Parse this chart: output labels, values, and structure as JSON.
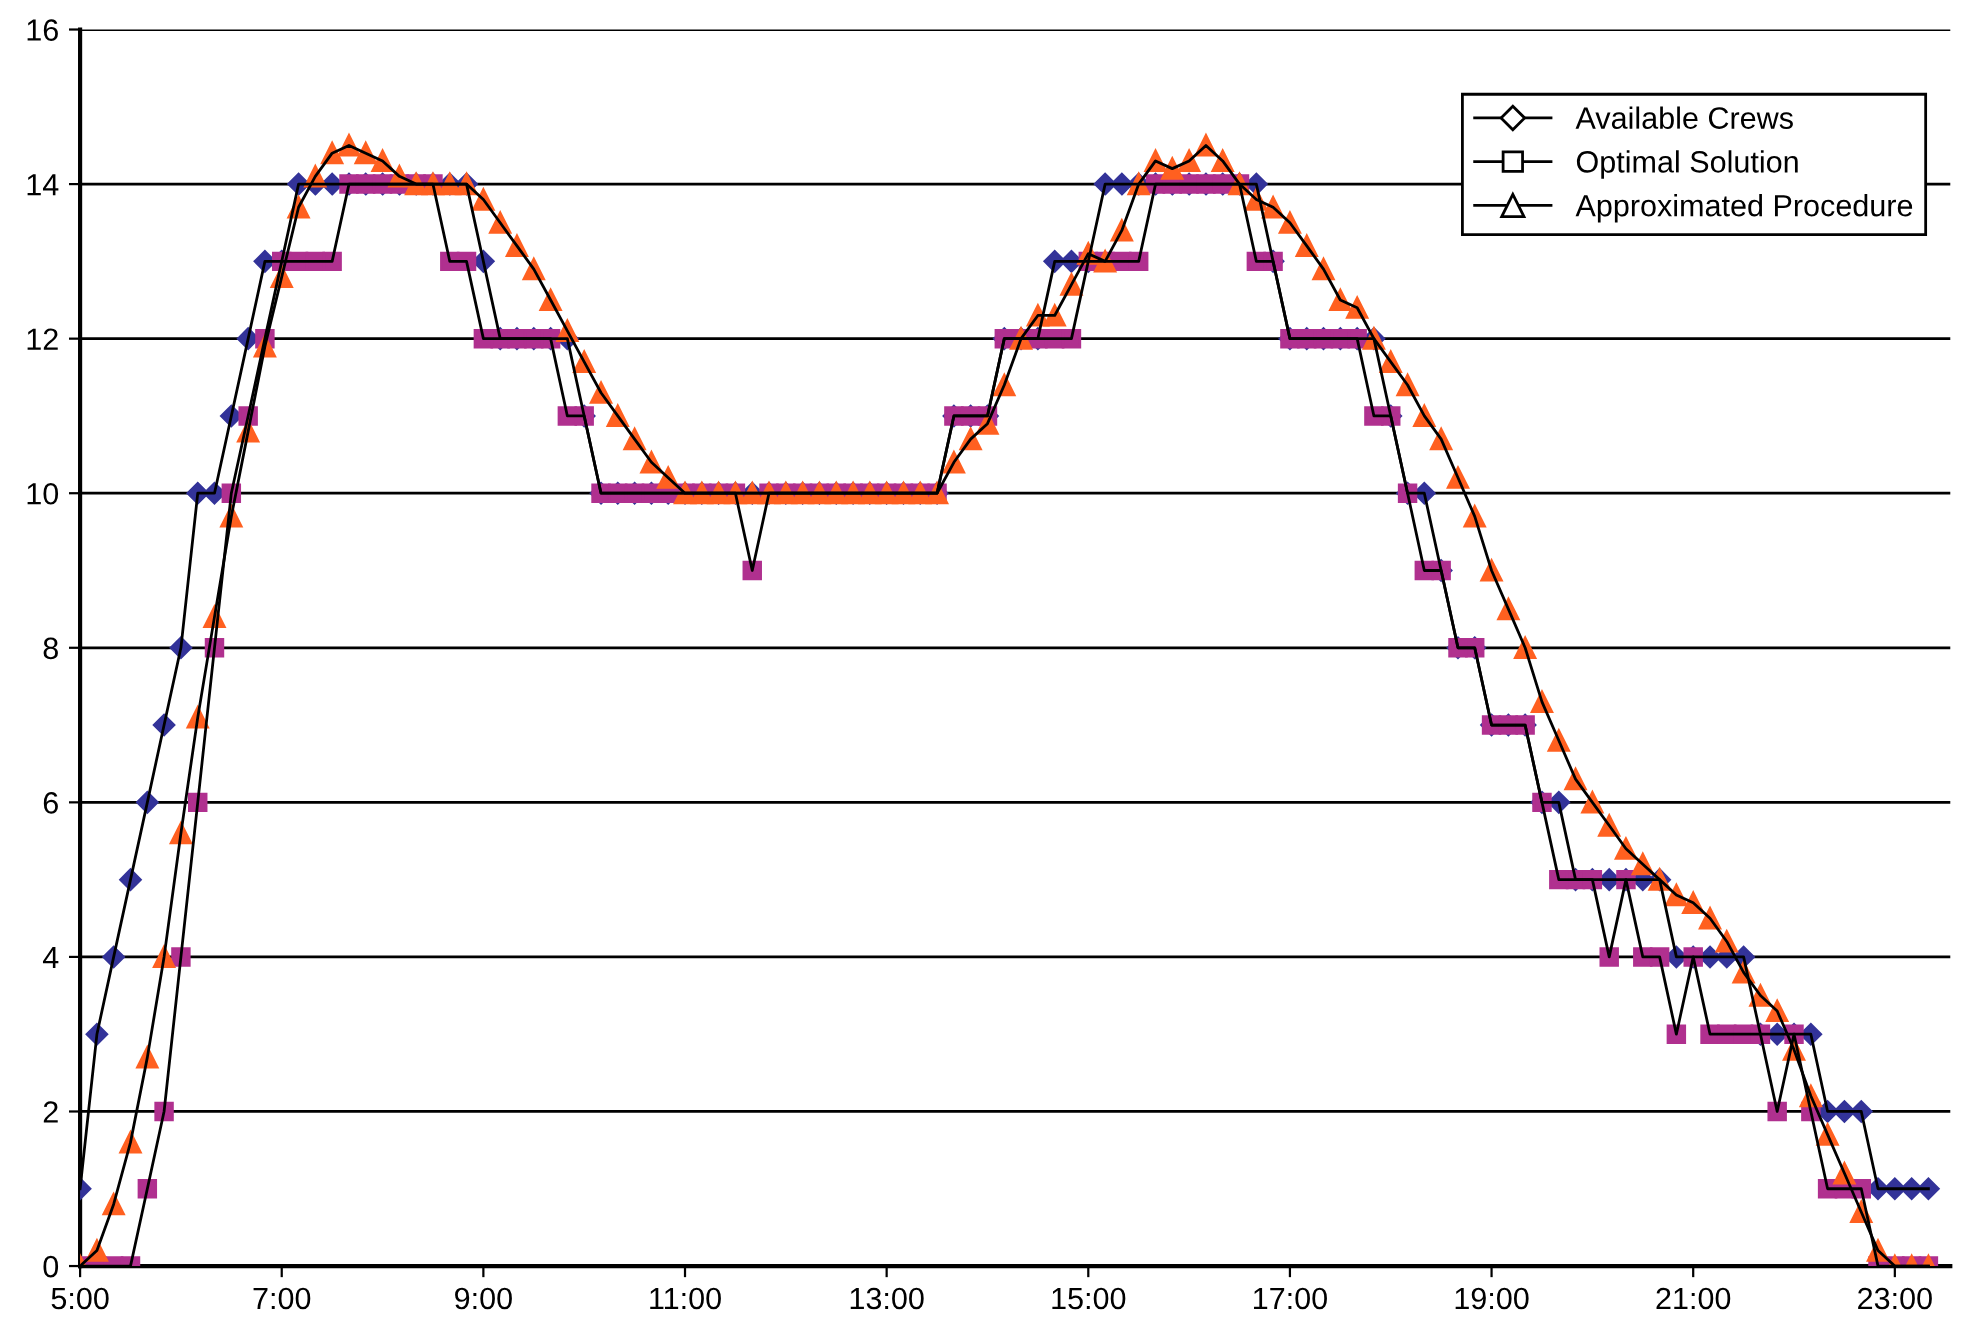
{
  "chart_data": {
    "type": "line",
    "x": [
      5,
      5.167,
      5.333,
      5.5,
      5.667,
      5.833,
      6,
      6.167,
      6.333,
      6.5,
      6.667,
      6.833,
      7,
      7.167,
      7.333,
      7.5,
      7.667,
      7.833,
      8,
      8.167,
      8.333,
      8.5,
      8.667,
      8.833,
      9,
      9.167,
      9.333,
      9.5,
      9.667,
      9.833,
      10,
      10.167,
      10.333,
      10.5,
      10.667,
      10.833,
      11,
      11.167,
      11.333,
      11.5,
      11.667,
      11.833,
      12,
      12.167,
      12.333,
      12.5,
      12.667,
      12.833,
      13,
      13.167,
      13.333,
      13.5,
      13.667,
      13.833,
      14,
      14.167,
      14.333,
      14.5,
      14.667,
      14.833,
      15,
      15.167,
      15.333,
      15.5,
      15.667,
      15.833,
      16,
      16.167,
      16.333,
      16.5,
      16.667,
      16.833,
      17,
      17.167,
      17.333,
      17.5,
      17.667,
      17.833,
      18,
      18.167,
      18.333,
      18.5,
      18.667,
      18.833,
      19,
      19.167,
      19.333,
      19.5,
      19.667,
      19.833,
      20,
      20.167,
      20.333,
      20.5,
      20.667,
      20.833,
      21,
      21.167,
      21.333,
      21.5,
      21.667,
      21.833,
      22,
      22.167,
      22.333,
      22.5,
      22.667,
      22.833,
      23,
      23.167,
      23.333
    ],
    "series": [
      {
        "name": "Available Crews",
        "color": "#333399",
        "marker": "diamond",
        "values": [
          1,
          3,
          4,
          5,
          6,
          7,
          8,
          10,
          10,
          11,
          12,
          13,
          13,
          14,
          14,
          14,
          14,
          14,
          14,
          14,
          14,
          14,
          14,
          14,
          13,
          12,
          12,
          12,
          12,
          12,
          11,
          10,
          10,
          10,
          10,
          10,
          10,
          10,
          10,
          10,
          10,
          10,
          10,
          10,
          10,
          10,
          10,
          10,
          10,
          10,
          10,
          10,
          11,
          11,
          11,
          12,
          12,
          12,
          13,
          13,
          13,
          14,
          14,
          14,
          14,
          14,
          14,
          14,
          14,
          14,
          14,
          13,
          12,
          12,
          12,
          12,
          12,
          12,
          11,
          10,
          10,
          9,
          8,
          8,
          7,
          7,
          7,
          6,
          6,
          5,
          5,
          5,
          5,
          5,
          5,
          4,
          4,
          4,
          4,
          4,
          3,
          3,
          3,
          3,
          2,
          2,
          2,
          1,
          1,
          1,
          1
        ]
      },
      {
        "name": "Optimal Solution",
        "color": "#b0308f",
        "marker": "square",
        "values": [
          0,
          0,
          0,
          0,
          1,
          2,
          4,
          6,
          8,
          10,
          11,
          12,
          13,
          13,
          13,
          13,
          14,
          14,
          14,
          14,
          14,
          14,
          13,
          13,
          12,
          12,
          12,
          12,
          12,
          11,
          11,
          10,
          10,
          10,
          10,
          10,
          10,
          10,
          10,
          10,
          9,
          10,
          10,
          10,
          10,
          10,
          10,
          10,
          10,
          10,
          10,
          10,
          11,
          11,
          11,
          12,
          12,
          12,
          12,
          12,
          13,
          13,
          13,
          13,
          14,
          14,
          14,
          14,
          14,
          14,
          13,
          13,
          12,
          12,
          12,
          12,
          12,
          11,
          11,
          10,
          9,
          9,
          8,
          8,
          7,
          7,
          7,
          6,
          5,
          5,
          5,
          4,
          5,
          4,
          4,
          3,
          4,
          3,
          3,
          3,
          3,
          2,
          3,
          2,
          1,
          1,
          1,
          0,
          0,
          0,
          0
        ]
      },
      {
        "name": "Approximated Procedure",
        "color": "#ff6020",
        "marker": "triangle",
        "values": [
          0,
          0.2,
          0.8,
          1.6,
          2.7,
          4.0,
          5.6,
          7.1,
          8.4,
          9.7,
          10.8,
          11.9,
          12.8,
          13.7,
          14.1,
          14.4,
          14.5,
          14.4,
          14.3,
          14.1,
          14.0,
          14.0,
          14.0,
          14.0,
          13.8,
          13.5,
          13.2,
          12.9,
          12.5,
          12.1,
          11.7,
          11.3,
          11.0,
          10.7,
          10.4,
          10.2,
          10,
          10,
          10,
          10,
          10,
          10,
          10,
          10,
          10,
          10,
          10,
          10,
          10,
          10,
          10,
          10,
          10.4,
          10.7,
          10.9,
          11.4,
          12.0,
          12.3,
          12.3,
          12.7,
          13.1,
          13.0,
          13.4,
          14.0,
          14.3,
          14.2,
          14.3,
          14.5,
          14.3,
          14.0,
          13.8,
          13.7,
          13.5,
          13.2,
          12.9,
          12.5,
          12.4,
          12.0,
          11.7,
          11.4,
          11.0,
          10.7,
          10.2,
          9.7,
          9.0,
          8.5,
          8.0,
          7.3,
          6.8,
          6.3,
          6.0,
          5.7,
          5.4,
          5.2,
          5.0,
          4.8,
          4.7,
          4.5,
          4.2,
          3.8,
          3.5,
          3.3,
          2.8,
          2.2,
          1.7,
          1.2,
          0.7,
          0.2,
          0,
          0,
          0
        ]
      }
    ],
    "xlim": [
      5,
      23.55
    ],
    "xticks": [
      {
        "value": 5,
        "label": "5:00"
      },
      {
        "value": 7,
        "label": "7:00"
      },
      {
        "value": 9,
        "label": "9:00"
      },
      {
        "value": 11,
        "label": "11:00"
      },
      {
        "value": 13,
        "label": "13:00"
      },
      {
        "value": 15,
        "label": "15:00"
      },
      {
        "value": 17,
        "label": "17:00"
      },
      {
        "value": 19,
        "label": "19:00"
      },
      {
        "value": 21,
        "label": "21:00"
      },
      {
        "value": 23,
        "label": "23:00"
      }
    ],
    "ylim": [
      0,
      16
    ],
    "yticks": [
      0,
      2,
      4,
      6,
      8,
      10,
      12,
      14,
      16
    ],
    "grid": "y",
    "legend": "top right",
    "line_style": "solid"
  }
}
